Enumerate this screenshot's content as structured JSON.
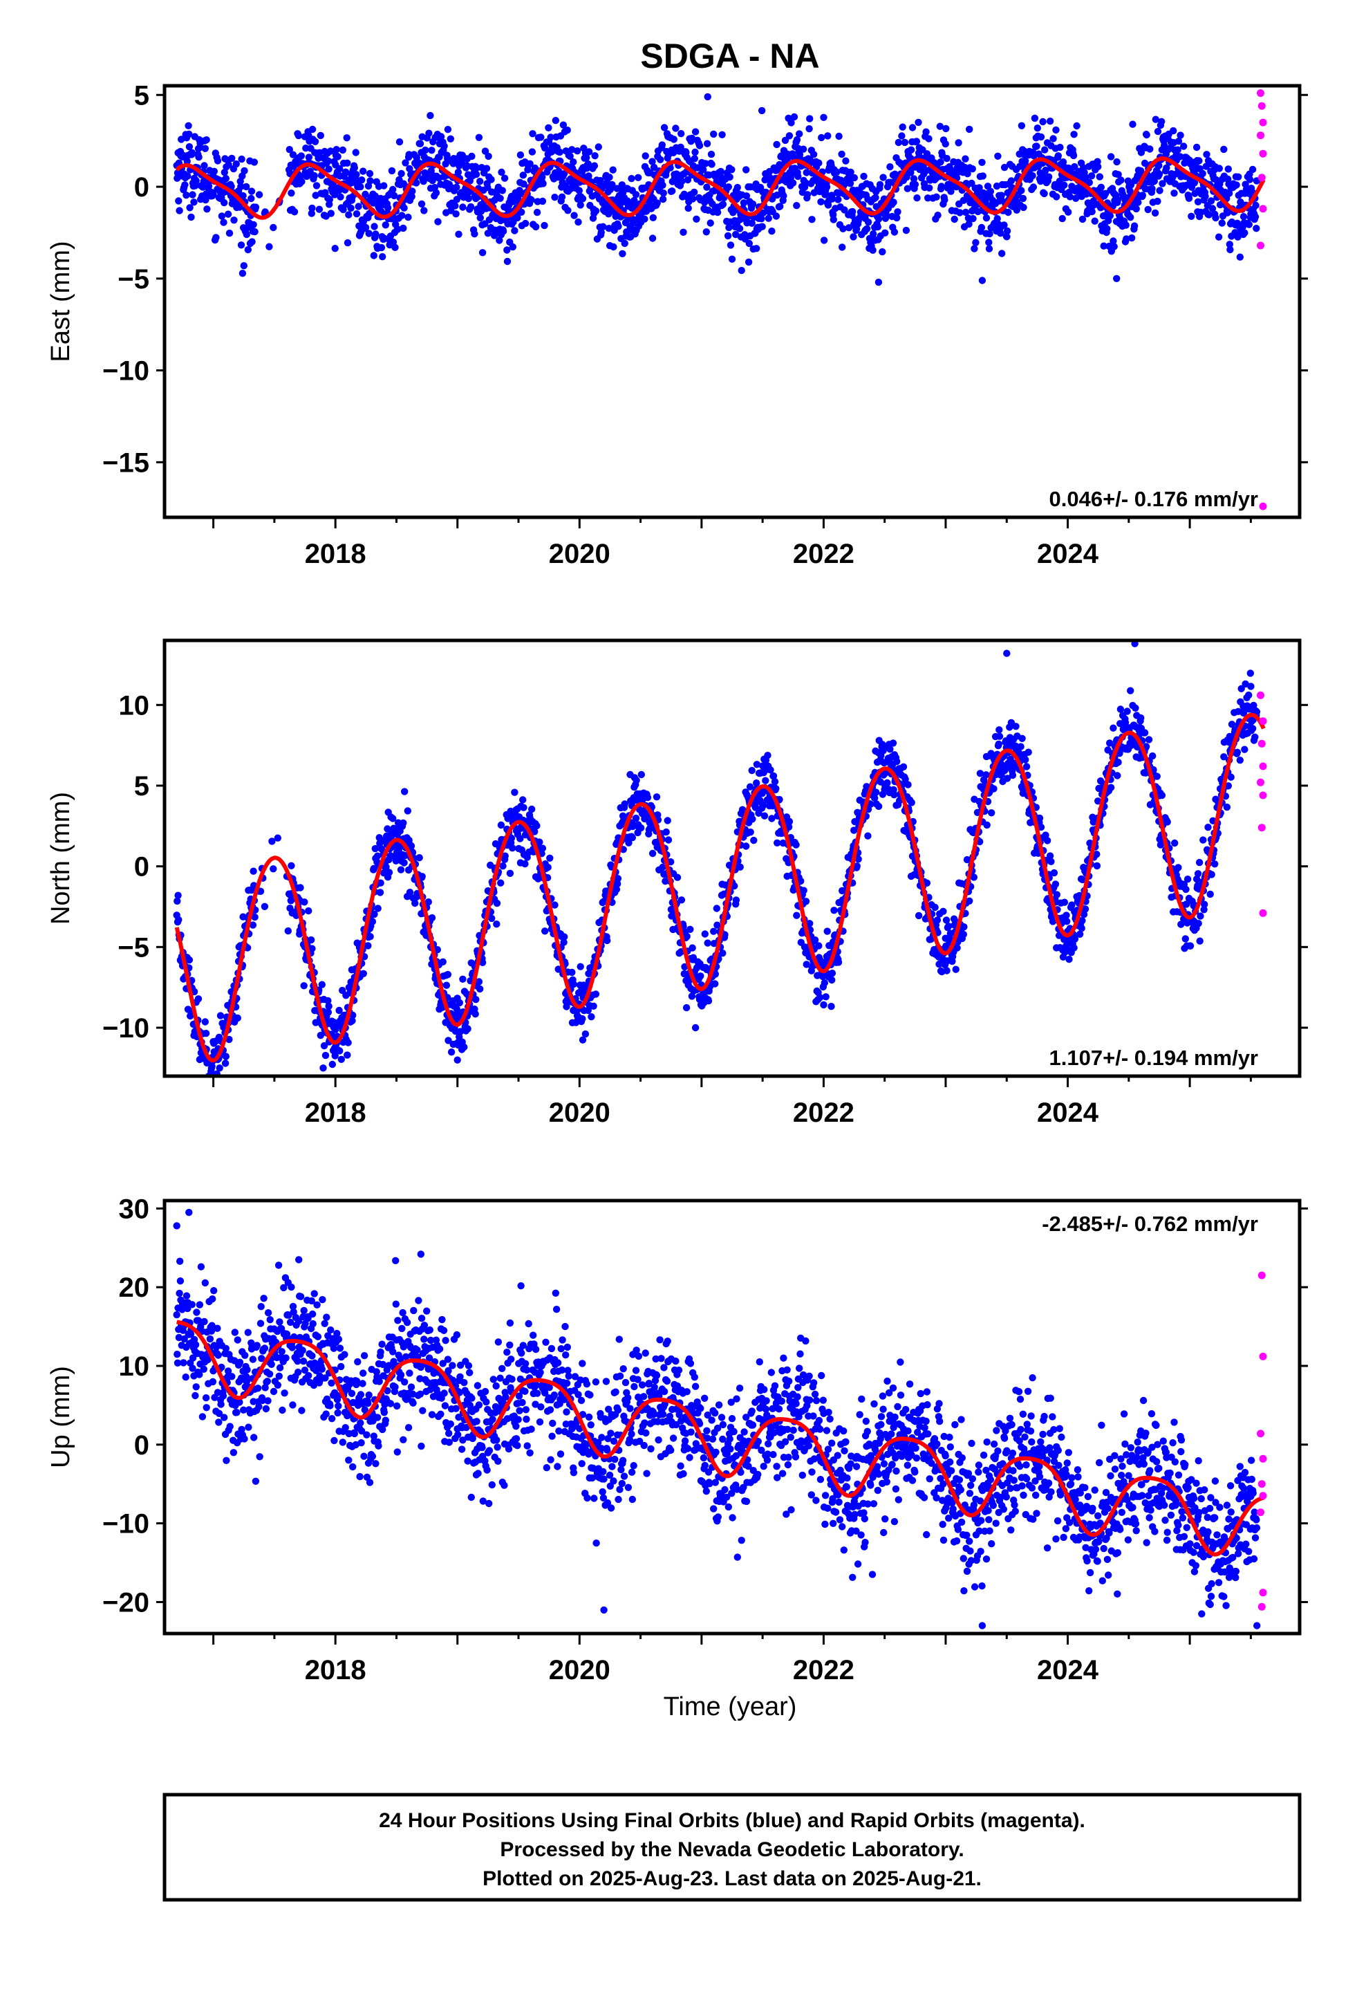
{
  "title": "SDGA - NA",
  "caption_lines": [
    "24 Hour Positions Using Final Orbits (blue) and Rapid Orbits (magenta).",
    "Processed by the Nevada Geodetic Laboratory.",
    "Plotted on 2025-Aug-23. Last data on 2025-Aug-21."
  ],
  "xlabel": "Time (year)",
  "colors": {
    "final": "#0000ff",
    "rapid": "#ff00ff",
    "model": "#ff0000",
    "axis": "#000000"
  },
  "chart_data": [
    {
      "type": "scatter",
      "ylabel": "East (mm)",
      "rate_label": "0.046+/- 0.176 mm/yr",
      "rate_position": "bottom-right",
      "xlim": [
        2016.6,
        2025.9
      ],
      "ylim": [
        -18,
        5.5
      ],
      "yticks": [
        5,
        0,
        -5,
        -10,
        -15
      ],
      "ytick_labels": [
        "5",
        "0",
        "−5",
        "−10",
        "−15"
      ],
      "xticks": [
        2018,
        2020,
        2022,
        2024
      ],
      "xtick_labels": [
        "2018",
        "2020",
        "2022",
        "2024"
      ],
      "model": {
        "offset": 0.0,
        "trend": 0.046,
        "t0": 2021.0,
        "annual_amp": 1.3,
        "annual_peak": 2020.85,
        "semi_amp": 0.35,
        "semi_peak": 2020.7
      },
      "scatter_noise": 1.1,
      "data_start": 2016.7,
      "data_end": 2025.55,
      "outliers": [
        [
          2021.05,
          4.9
        ],
        [
          2022.45,
          -5.2
        ],
        [
          2023.3,
          -5.1
        ],
        [
          2024.4,
          -5.0
        ],
        [
          2017.25,
          -4.3
        ]
      ],
      "rapid": [
        [
          2025.58,
          5.1
        ],
        [
          2025.59,
          4.4
        ],
        [
          2025.6,
          3.5
        ],
        [
          2025.58,
          2.8
        ],
        [
          2025.6,
          1.8
        ],
        [
          2025.59,
          0.5
        ],
        [
          2025.6,
          -1.2
        ],
        [
          2025.58,
          -3.2
        ],
        [
          2025.6,
          -17.4
        ]
      ]
    },
    {
      "type": "scatter",
      "ylabel": "North (mm)",
      "rate_label": "1.107+/- 0.194 mm/yr",
      "rate_position": "bottom-right",
      "xlim": [
        2016.6,
        2025.9
      ],
      "ylim": [
        -13,
        14
      ],
      "yticks": [
        10,
        5,
        0,
        -5,
        -10
      ],
      "ytick_labels": [
        "10",
        "5",
        "0",
        "−5",
        "−10"
      ],
      "xticks": [
        2018,
        2020,
        2022,
        2024
      ],
      "xtick_labels": [
        "2018",
        "2020",
        "2022",
        "2024"
      ],
      "model": {
        "offset": -1.2,
        "trend": 1.107,
        "t0": 2021.0,
        "annual_amp": 6.0,
        "annual_peak": 2020.5,
        "semi_amp": 0.4,
        "semi_peak": 2020.25
      },
      "scatter_noise": 1.0,
      "data_start": 2016.7,
      "data_end": 2025.55,
      "outliers": [
        [
          2017.9,
          -12.5
        ],
        [
          2019.0,
          -12.0
        ],
        [
          2024.55,
          13.8
        ],
        [
          2023.5,
          13.2
        ]
      ],
      "rapid": [
        [
          2025.58,
          10.6
        ],
        [
          2025.6,
          9.0
        ],
        [
          2025.59,
          7.6
        ],
        [
          2025.6,
          6.2
        ],
        [
          2025.58,
          5.2
        ],
        [
          2025.6,
          4.4
        ],
        [
          2025.59,
          2.4
        ],
        [
          2025.6,
          -2.9
        ]
      ]
    },
    {
      "type": "scatter",
      "ylabel": "Up (mm)",
      "xlabel": "Time (year)",
      "rate_label": "-2.485+/- 0.762 mm/yr",
      "rate_position": "top-right",
      "xlim": [
        2016.6,
        2025.9
      ],
      "ylim": [
        -24,
        31
      ],
      "yticks": [
        30,
        20,
        10,
        0,
        -10,
        -20
      ],
      "ytick_labels": [
        "30",
        "20",
        "10",
        "0",
        "−10",
        "−20"
      ],
      "xticks": [
        2018,
        2020,
        2022,
        2024
      ],
      "xtick_labels": [
        "2018",
        "2020",
        "2022",
        "2024"
      ],
      "model": {
        "offset": 1.5,
        "trend": -2.485,
        "t0": 2021.0,
        "annual_amp": 4.2,
        "annual_peak": 2020.7,
        "semi_amp": 0.8,
        "semi_peak": 2020.45
      },
      "scatter_noise": 4.0,
      "data_start": 2016.7,
      "data_end": 2025.55,
      "outliers": [
        [
          2016.8,
          29.5
        ],
        [
          2016.7,
          27.8
        ],
        [
          2018.7,
          24.2
        ],
        [
          2017.7,
          23.5
        ],
        [
          2020.2,
          -21.0
        ],
        [
          2023.3,
          -23.0
        ],
        [
          2025.55,
          -23.0
        ],
        [
          2022.4,
          -16.5
        ]
      ],
      "rapid": [
        [
          2025.59,
          21.5
        ],
        [
          2025.6,
          11.2
        ],
        [
          2025.58,
          1.4
        ],
        [
          2025.6,
          -1.8
        ],
        [
          2025.59,
          -5.0
        ],
        [
          2025.6,
          -6.5
        ],
        [
          2025.58,
          -8.6
        ],
        [
          2025.6,
          -18.8
        ],
        [
          2025.59,
          -20.6
        ]
      ]
    }
  ]
}
